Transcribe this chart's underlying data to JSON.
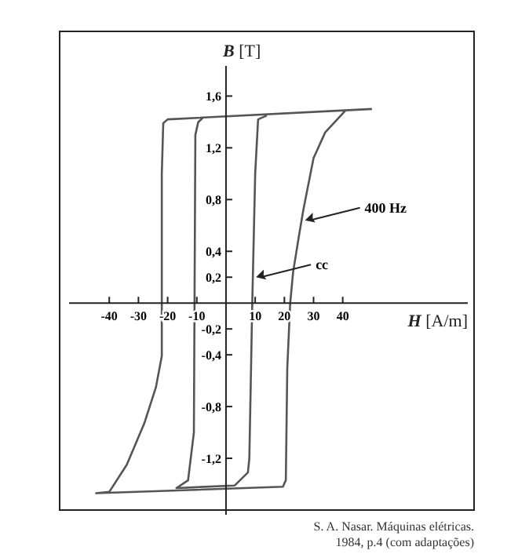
{
  "chart_data": {
    "type": "line",
    "xlabel": "H [A/m]",
    "ylabel": "B [T]",
    "xlim": [
      -57,
      85
    ],
    "ylim": [
      -1.6,
      2.1
    ],
    "xticks": [
      -40,
      -30,
      -20,
      -10,
      10,
      20,
      30,
      40
    ],
    "yticks": [
      {
        "value": 1.6,
        "label": "1,6"
      },
      {
        "value": 1.2,
        "label": "1,2"
      },
      {
        "value": 0.8,
        "label": "0,8"
      },
      {
        "value": 0.4,
        "label": "0,4"
      },
      {
        "value": 0.2,
        "label": "0,2"
      },
      {
        "value": -0.2,
        "label": "-0,2"
      },
      {
        "value": -0.4,
        "label": "-0,4"
      },
      {
        "value": -0.8,
        "label": "-0,8"
      },
      {
        "value": -1.2,
        "label": "-1,2"
      }
    ],
    "grid": false,
    "marker": "none",
    "line_style": "solid",
    "series": [
      {
        "color": "#555555",
        "x": [
          50,
          -20,
          -21.5,
          -22,
          -22,
          -24,
          -28,
          -34,
          -40,
          -44.5,
          19.5,
          20.5,
          21,
          22,
          23,
          25,
          26.5,
          30,
          34,
          41
        ],
        "values": [
          1.5,
          1.42,
          1.39,
          1.0,
          -0.41,
          -0.65,
          -0.93,
          -1.25,
          -1.46,
          -1.47,
          -1.42,
          -1.37,
          -0.5,
          0,
          0.24,
          0.52,
          0.72,
          1.12,
          1.32,
          1.49
        ]
      },
      {
        "color": "#555555",
        "x": [
          14,
          11,
          10,
          9,
          8,
          7.5,
          3,
          -17,
          -13,
          -11,
          -10.5,
          -9.5,
          -8
        ],
        "values": [
          1.45,
          1.42,
          1.0,
          0,
          -1.2,
          -1.31,
          -1.41,
          -1.43,
          -1.37,
          -1.0,
          1.3,
          1.4,
          1.43
        ]
      }
    ],
    "annotations": [
      {
        "text": "400 Hz",
        "x": 26,
        "y": 0.64
      },
      {
        "text": "cc",
        "x": 9.2,
        "y": 0.2
      },
      "S. A. Nasar. Máquinas elétricas.",
      "1984, p.4 (com adaptações)"
    ]
  }
}
